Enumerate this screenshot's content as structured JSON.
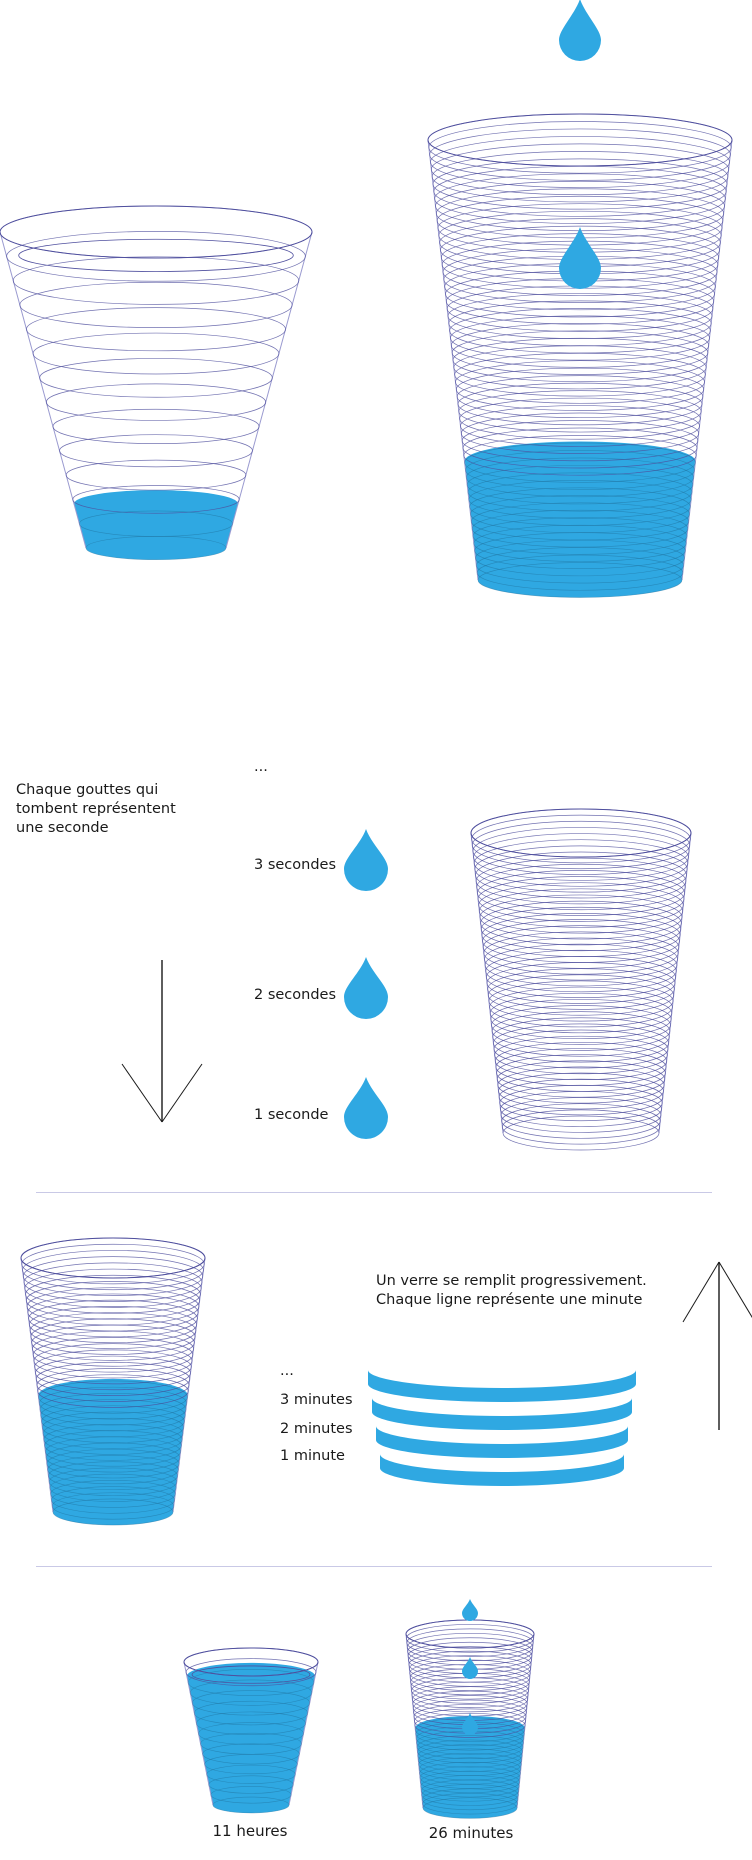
{
  "colors": {
    "water": "#2fa8e2",
    "glass_line": "#4f4f9e",
    "glass_line_light": "#9a9ad0",
    "text": "#1a1a1a",
    "divider": "#c9c9e6"
  },
  "section_drops": {
    "intro": [
      "Chaque gouttes qui",
      "tombent représentent",
      "une seconde"
    ],
    "ellipsis": "...",
    "drop_labels": [
      "3 secondes",
      "2 secondes",
      "1 seconde"
    ]
  },
  "section_lines": {
    "intro": [
      "Un verre se remplit progressivement.",
      "Chaque ligne représente une minute"
    ],
    "ellipsis": "...",
    "line_labels": [
      "3 minutes",
      "2 minutes",
      "1 minute"
    ]
  },
  "comparison": {
    "left_caption": "11 heures",
    "right_caption": "26 minutes"
  },
  "icons": [
    "water-drop-icon",
    "arrow-down-icon",
    "arrow-up-icon",
    "glass-icon"
  ]
}
